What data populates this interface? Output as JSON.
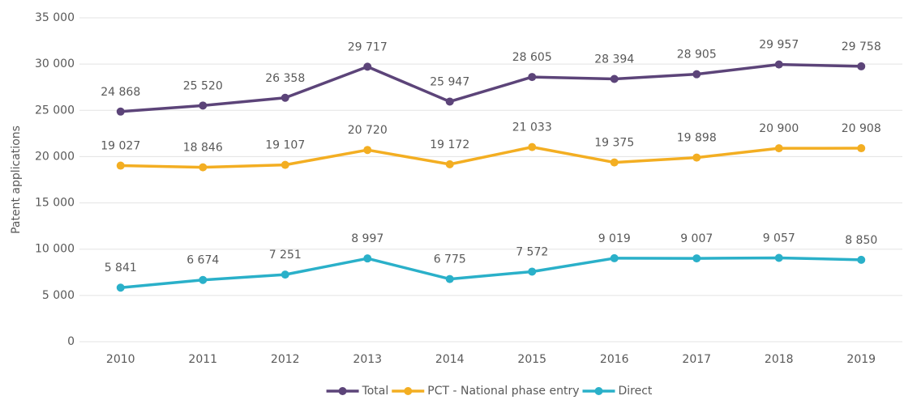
{
  "chart_data": {
    "type": "line",
    "y_label": "Patent applications",
    "categories": [
      "2010",
      "2011",
      "2012",
      "2013",
      "2014",
      "2015",
      "2016",
      "2017",
      "2018",
      "2019"
    ],
    "series": [
      {
        "name": "Total",
        "color": "#5c4479",
        "values": [
          24868,
          25520,
          26358,
          29717,
          25947,
          28605,
          28394,
          28905,
          29957,
          29758
        ],
        "value_labels": [
          "24 868",
          "25 520",
          "26 358",
          "29 717",
          "25 947",
          "28 605",
          "28 394",
          "28 905",
          "29 957",
          "29 758"
        ]
      },
      {
        "name": "PCT - National phase entry",
        "color": "#f3ae22",
        "values": [
          19027,
          18846,
          19107,
          20720,
          19172,
          21033,
          19375,
          19898,
          20900,
          20908
        ],
        "value_labels": [
          "19 027",
          "18 846",
          "19 107",
          "20 720",
          "19 172",
          "21 033",
          "19 375",
          "19 898",
          "20 900",
          "20 908"
        ]
      },
      {
        "name": "Direct",
        "color": "#2ab0c9",
        "values": [
          5841,
          6674,
          7251,
          8997,
          6775,
          7572,
          9019,
          9007,
          9057,
          8850
        ],
        "value_labels": [
          "5 841",
          "6 674",
          "7 251",
          "8 997",
          "6 775",
          "7 572",
          "9 019",
          "9 007",
          "9 057",
          "8 850"
        ]
      }
    ],
    "ylim": [
      0,
      35000
    ],
    "yticks": [
      0,
      {
        "value": 5000,
        "label": "5 000"
      },
      {
        "value": 10000,
        "label": "10 000"
      },
      {
        "value": 15000,
        "label": "15 000"
      },
      {
        "value": 20000,
        "label": "20 000"
      },
      {
        "value": 25000,
        "label": "25 000"
      },
      {
        "value": 30000,
        "label": "30 000"
      },
      {
        "value": 35000,
        "label": "35 000"
      }
    ],
    "grid": true,
    "legend": "bottom"
  }
}
